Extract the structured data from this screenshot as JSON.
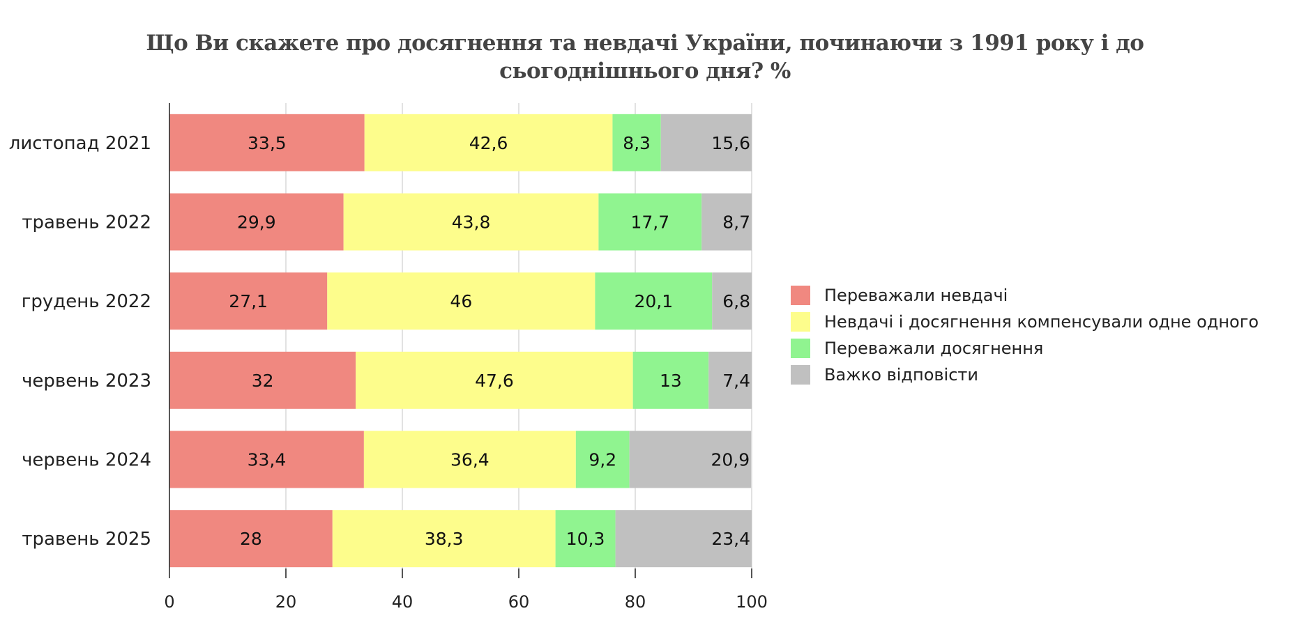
{
  "chart_data": {
    "type": "bar",
    "orientation": "horizontal",
    "stacked": true,
    "title_lines": [
      "Що Ви скажете про досягнення та невдачі України, починаючи з 1991 року і до",
      "сьогоднішнього дня? %"
    ],
    "categories": [
      "листопад 2021",
      "травень 2022",
      "грудень 2022",
      "червень 2023",
      "червень 2024",
      "травень 2025"
    ],
    "series": [
      {
        "name": "Переважали невдачі",
        "color": "#f08880",
        "values": [
          33.5,
          29.9,
          27.1,
          32,
          33.4,
          28
        ],
        "labels": [
          "33,5",
          "29,9",
          "27,1",
          "32",
          "33,4",
          "28"
        ]
      },
      {
        "name": "Невдачі і досягнення компенсували одне одного",
        "color": "#fdfd8c",
        "values": [
          42.6,
          43.8,
          46,
          47.6,
          36.4,
          38.3
        ],
        "labels": [
          "42,6",
          "43,8",
          "46",
          "47,6",
          "36,4",
          "38,3"
        ]
      },
      {
        "name": "Переважали досягнення",
        "color": "#90f490",
        "values": [
          8.3,
          17.7,
          20.1,
          13,
          9.2,
          10.3
        ],
        "labels": [
          "8,3",
          "17,7",
          "20,1",
          "13",
          "9,2",
          "10,3"
        ]
      },
      {
        "name": "Важко відповісти",
        "color": "#c0c0c0",
        "values": [
          15.6,
          8.7,
          6.8,
          7.4,
          20.9,
          23.4
        ],
        "labels": [
          "15,6",
          "8,7",
          "6,8",
          "7,4",
          "20,9",
          "23,4"
        ]
      }
    ],
    "xlim": [
      0,
      100
    ],
    "xticks": [
      0,
      20,
      40,
      60,
      80,
      100
    ],
    "grid": true,
    "legend_position": "right"
  }
}
